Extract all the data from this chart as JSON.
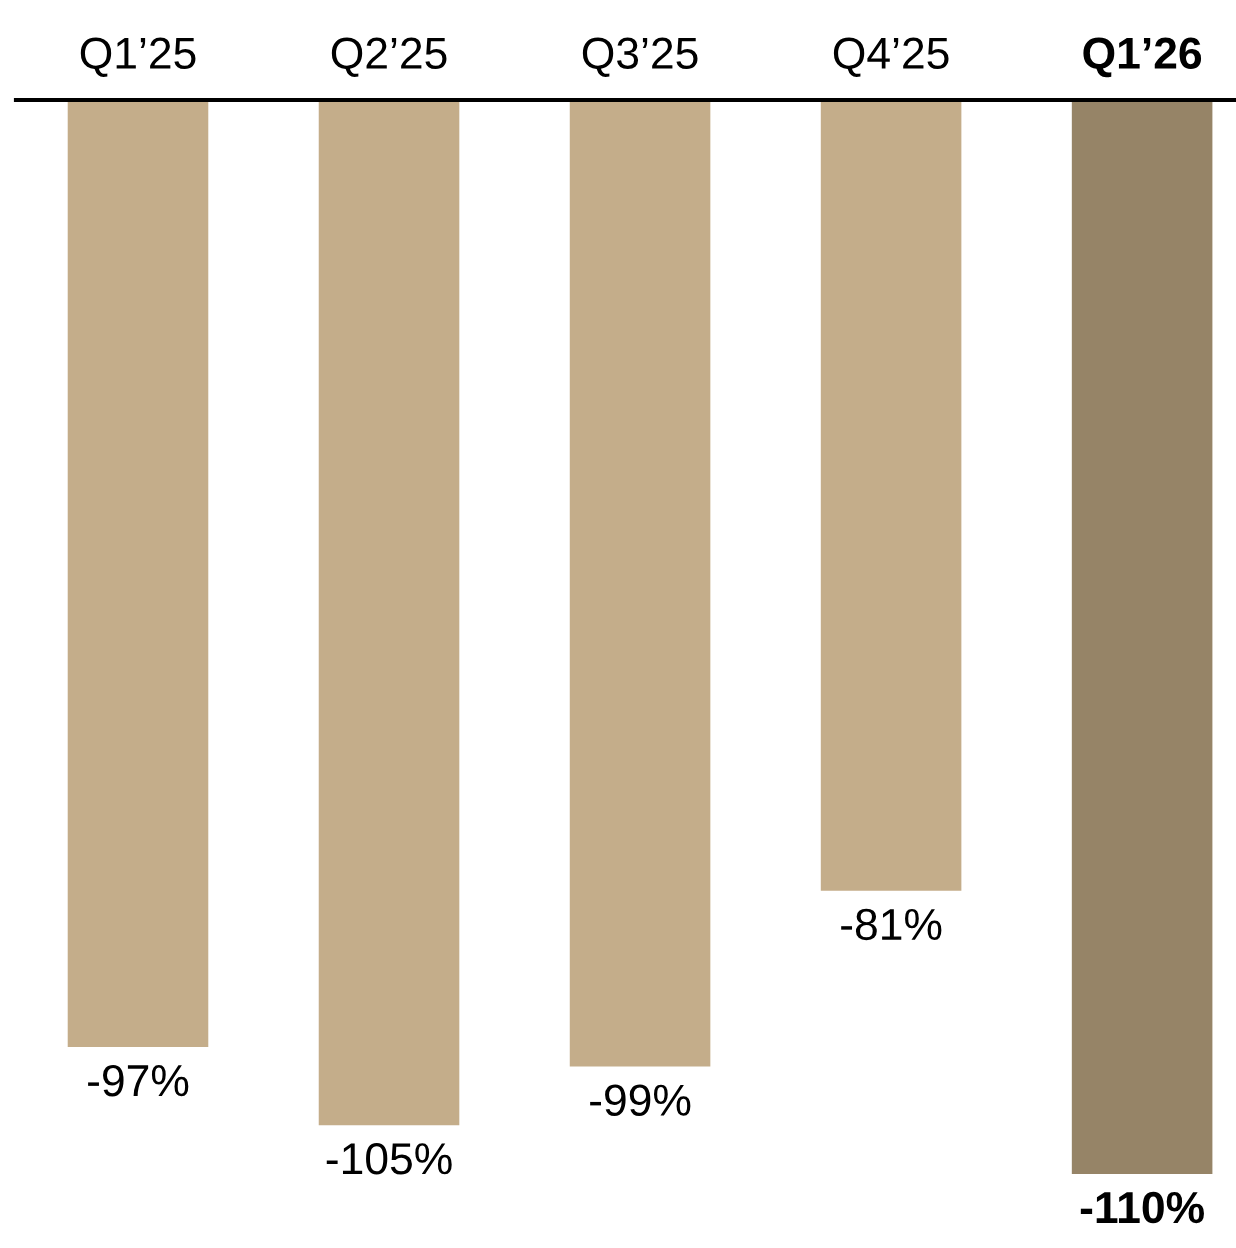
{
  "chart_data": {
    "type": "bar",
    "categories": [
      "Q1’25",
      "Q2’25",
      "Q3’25",
      "Q4’25",
      "Q1’26"
    ],
    "values": [
      -97,
      -105,
      -99,
      -81,
      -110
    ],
    "colors": [
      "#c4ad8a",
      "#c4ad8a",
      "#c4ad8a",
      "#c4ad8a",
      "#968467"
    ],
    "value_labels": [
      "-97%",
      "-105%",
      "-99%",
      "-81%",
      "-110%"
    ],
    "grid": false,
    "legend": false
  }
}
